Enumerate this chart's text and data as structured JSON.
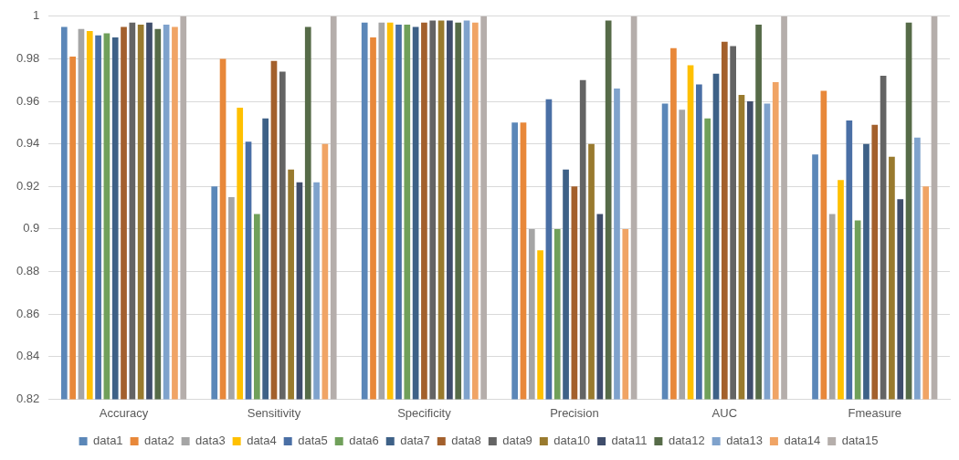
{
  "chart_data": {
    "type": "bar",
    "categories": [
      "Accuracy",
      "Sensitivity",
      "Specificity",
      "Precision",
      "AUC",
      "Fmeasure"
    ],
    "ylim": [
      0.82,
      1
    ],
    "yticks": [
      0.82,
      0.84,
      0.86,
      0.88,
      0.9,
      0.92,
      0.94,
      0.96,
      0.98,
      1
    ],
    "grid": "y",
    "legend": "bottom",
    "series": [
      {
        "name": "data1",
        "color": "#5b87b8",
        "values": [
          0.995,
          0.92,
          0.997,
          0.95,
          0.959,
          0.935
        ]
      },
      {
        "name": "data2",
        "color": "#e8883a",
        "values": [
          0.981,
          0.98,
          0.99,
          0.95,
          0.985,
          0.965
        ]
      },
      {
        "name": "data3",
        "color": "#a5a5a5",
        "values": [
          0.994,
          0.915,
          0.997,
          0.9,
          0.956,
          0.907
        ]
      },
      {
        "name": "data4",
        "color": "#ffc000",
        "values": [
          0.993,
          0.957,
          0.997,
          0.89,
          0.977,
          0.923
        ]
      },
      {
        "name": "data5",
        "color": "#4a6fa5",
        "values": [
          0.991,
          0.941,
          0.996,
          0.961,
          0.968,
          0.951
        ]
      },
      {
        "name": "data6",
        "color": "#70a05a",
        "values": [
          0.992,
          0.907,
          0.996,
          0.9,
          0.952,
          0.904
        ]
      },
      {
        "name": "data7",
        "color": "#3e6187",
        "values": [
          0.99,
          0.952,
          0.995,
          0.928,
          0.973,
          0.94
        ]
      },
      {
        "name": "data8",
        "color": "#a3602c",
        "values": [
          0.995,
          0.979,
          0.997,
          0.92,
          0.988,
          0.949
        ]
      },
      {
        "name": "data9",
        "color": "#646464",
        "values": [
          0.997,
          0.974,
          0.998,
          0.97,
          0.986,
          0.972
        ]
      },
      {
        "name": "data10",
        "color": "#997a2e",
        "values": [
          0.996,
          0.928,
          0.998,
          0.94,
          0.963,
          0.934
        ]
      },
      {
        "name": "data11",
        "color": "#3f4d6b",
        "values": [
          0.997,
          0.922,
          0.998,
          0.907,
          0.96,
          0.914
        ]
      },
      {
        "name": "data12",
        "color": "#566b48",
        "values": [
          0.994,
          0.995,
          0.997,
          0.998,
          0.996,
          0.997
        ]
      },
      {
        "name": "data13",
        "color": "#7fa2cc",
        "values": [
          0.996,
          0.922,
          0.998,
          0.966,
          0.959,
          0.943
        ]
      },
      {
        "name": "data14",
        "color": "#f0a465",
        "values": [
          0.995,
          0.94,
          0.997,
          0.9,
          0.969,
          0.92
        ]
      },
      {
        "name": "data15",
        "color": "#b5aeab",
        "values": [
          1,
          1,
          1,
          1,
          1,
          1
        ]
      }
    ]
  }
}
